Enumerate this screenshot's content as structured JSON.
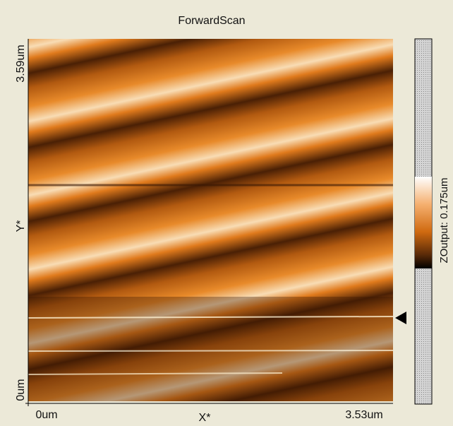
{
  "window": {
    "title": "ForwardScan"
  },
  "x_axis": {
    "start": "0um",
    "name": "X*",
    "end": "3.53um"
  },
  "y_axis": {
    "start": "0um",
    "name": "Y*",
    "end": "3.59um"
  },
  "colorbar": {
    "label": "ZOutput: 0.175um"
  }
}
